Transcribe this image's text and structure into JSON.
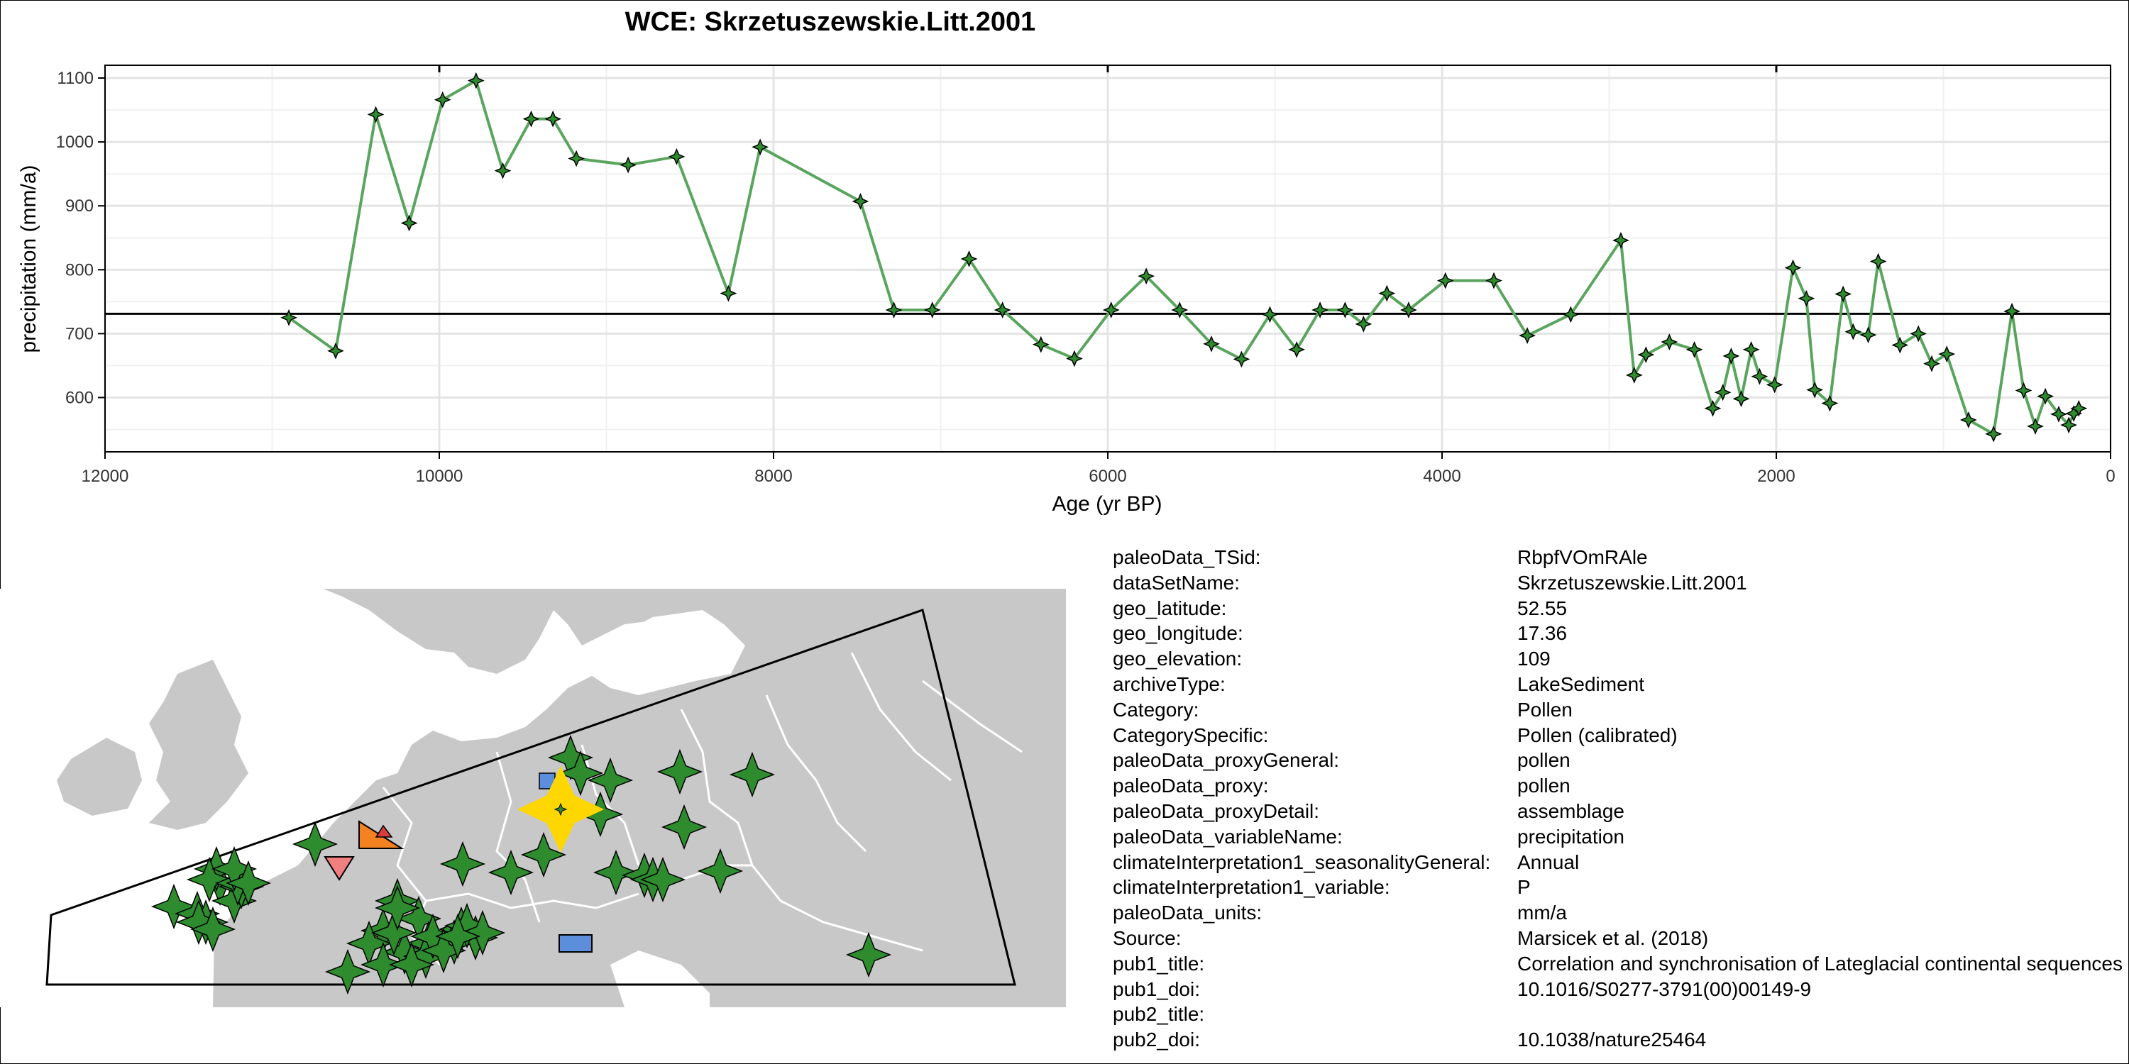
{
  "chart_data": {
    "type": "line",
    "title": "WCE: Skrzetuszewskie.Litt.2001",
    "xlabel": "Age (yr BP)",
    "ylabel": "precipitation (mm/a)",
    "xlim": [
      12000,
      0
    ],
    "ylim": [
      515,
      1120
    ],
    "x_ticks": [
      12000,
      10000,
      8000,
      6000,
      4000,
      2000,
      0
    ],
    "y_ticks": [
      600,
      700,
      800,
      900,
      1000,
      1100
    ],
    "mean_line": 731,
    "grid": true,
    "line_color": "#5aa55e",
    "marker": "four-point-star",
    "series": [
      {
        "x": [
          10900,
          10620,
          10380,
          10180,
          9980,
          9780,
          9620,
          9450,
          9320,
          9180,
          8870,
          8580,
          8270,
          8080,
          7480,
          7280,
          7050,
          6830,
          6630,
          6400,
          6200,
          5980,
          5770,
          5570,
          5380,
          5200,
          5030,
          4870,
          4730,
          4580,
          4470,
          4330,
          4200,
          3980,
          3690,
          3490,
          3230,
          2930,
          2850,
          2780,
          2640,
          2490,
          2380,
          2320,
          2270,
          2210,
          2150,
          2100,
          2010,
          1900,
          1820,
          1770,
          1680,
          1600,
          1540,
          1450,
          1390,
          1260,
          1150,
          1070,
          980,
          850,
          700,
          590,
          520,
          450,
          390,
          310,
          250,
          220,
          190
        ],
        "y": [
          725,
          673,
          1043,
          873,
          1066,
          1096,
          955,
          1036,
          1036,
          974,
          964,
          977,
          763,
          992,
          907,
          737,
          737,
          817,
          737,
          683,
          661,
          737,
          790,
          737,
          684,
          660,
          730,
          675,
          737,
          737,
          715,
          763,
          737,
          783,
          783,
          697,
          730,
          846,
          635,
          667,
          687,
          675,
          583,
          608,
          665,
          598,
          675,
          633,
          620,
          803,
          755,
          612,
          591,
          762,
          703,
          698,
          813,
          682,
          700,
          653,
          668,
          565,
          543,
          735,
          611,
          555,
          602,
          574,
          557,
          575,
          583
        ]
      }
    ],
    "map": {
      "highlight_color": "#ffd700",
      "site_color": "#2e8b2e",
      "land_color": "#c8c8c8"
    }
  },
  "metadata": [
    {
      "key": "paleoData_TSid:",
      "value": "RbpfVOmRAle"
    },
    {
      "key": "dataSetName:",
      "value": "Skrzetuszewskie.Litt.2001"
    },
    {
      "key": "geo_latitude:",
      "value": "52.55"
    },
    {
      "key": "geo_longitude:",
      "value": "17.36"
    },
    {
      "key": "geo_elevation:",
      "value": "109"
    },
    {
      "key": "archiveType:",
      "value": "LakeSediment"
    },
    {
      "key": "Category:",
      "value": "Pollen"
    },
    {
      "key": "CategorySpecific:",
      "value": "Pollen (calibrated)"
    },
    {
      "key": "paleoData_proxyGeneral:",
      "value": "pollen"
    },
    {
      "key": "paleoData_proxy:",
      "value": "pollen"
    },
    {
      "key": "paleoData_proxyDetail:",
      "value": "assemblage"
    },
    {
      "key": "paleoData_variableName:",
      "value": "precipitation"
    },
    {
      "key": "climateInterpretation1_seasonalityGeneral:",
      "value": "Annual"
    },
    {
      "key": "climateInterpretation1_variable:",
      "value": "P"
    },
    {
      "key": "paleoData_units:",
      "value": "mm/a"
    },
    {
      "key": "Source:",
      "value": "Marsicek et al. (2018)"
    },
    {
      "key": "pub1_title:",
      "value": "Correlation and synchronisation of Lateglacial continental sequences"
    },
    {
      "key": "pub1_doi:",
      "value": "10.1016/S0277-3791(00)00149-9"
    },
    {
      "key": "pub2_title:",
      "value": ""
    },
    {
      "key": "pub2_doi:",
      "value": "10.1038/nature25464"
    }
  ]
}
